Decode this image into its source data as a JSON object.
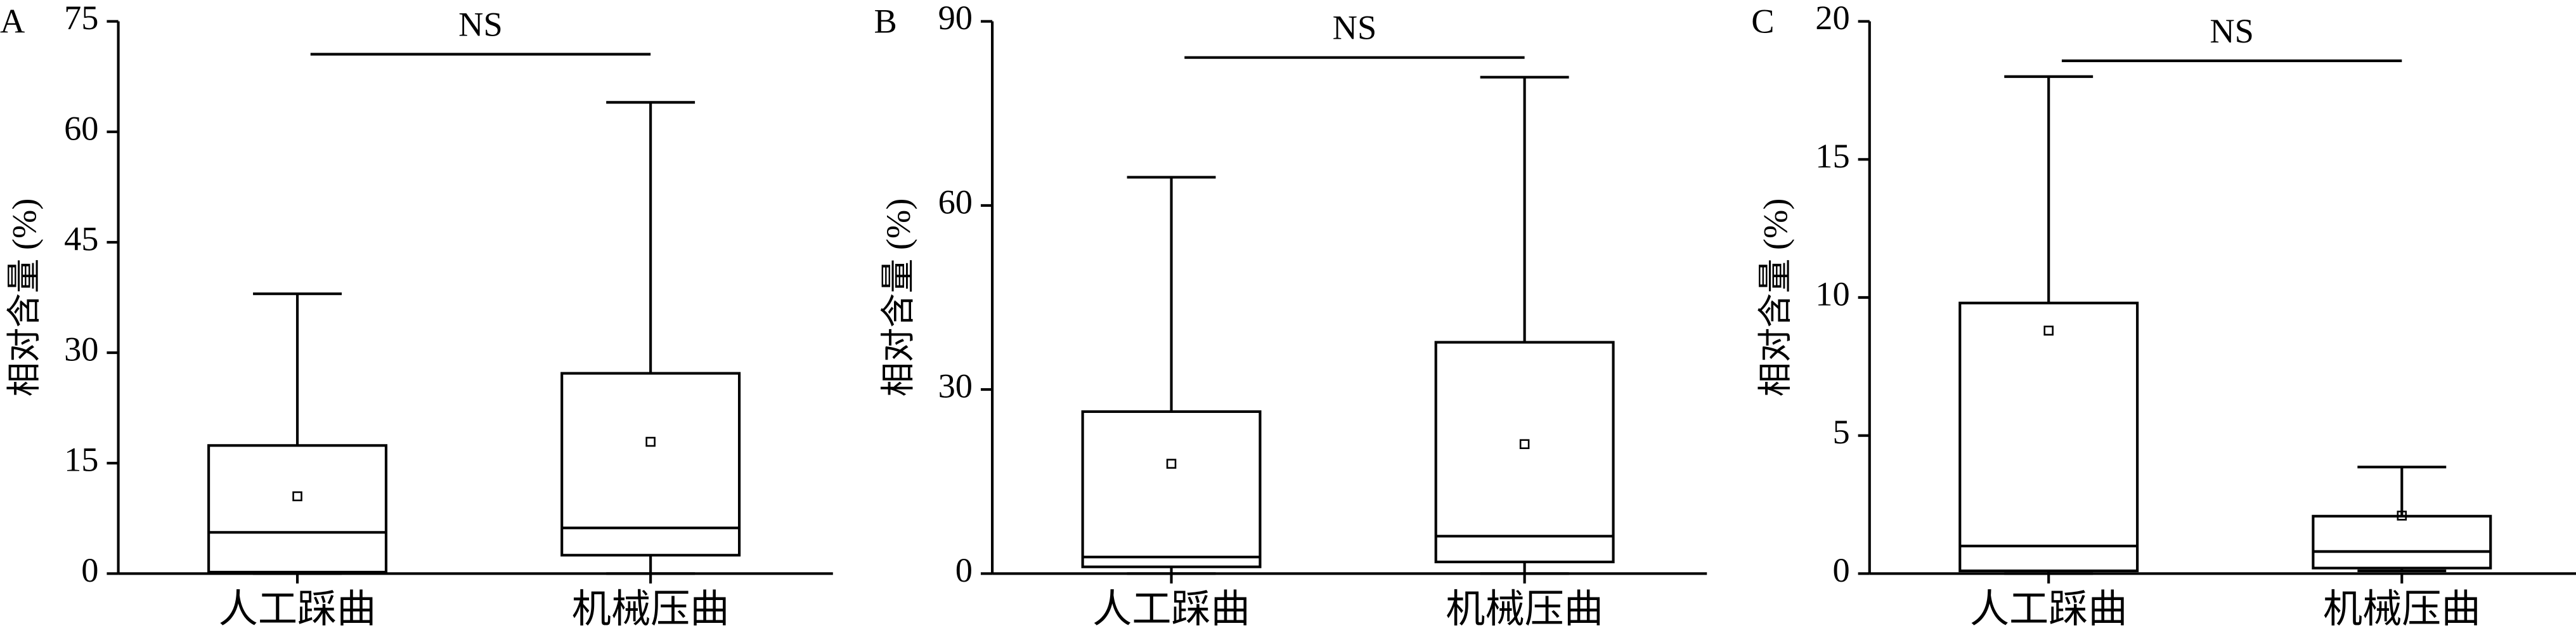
{
  "chart_data": [
    {
      "type": "box",
      "panel_label": "A",
      "ylabel": "相对含量 (%)",
      "annotation": "NS",
      "categories": [
        "人工踩曲",
        "机械压曲"
      ],
      "boxes": [
        {
          "min": 0,
          "q1": 0.2,
          "median": 5.6,
          "q3": 17.4,
          "max": 38,
          "mean": 10.5
        },
        {
          "min": 0,
          "q1": 2.5,
          "median": 6.2,
          "q3": 27.2,
          "max": 64,
          "mean": 17.9
        }
      ],
      "ylim": [
        0,
        75
      ],
      "yticks": [
        0,
        15,
        30,
        45,
        60,
        75
      ]
    },
    {
      "type": "box",
      "panel_label": "B",
      "ylabel": "相对含量 (%)",
      "annotation": "NS",
      "categories": [
        "人工踩曲",
        "机械压曲"
      ],
      "boxes": [
        {
          "min": 0,
          "q1": 1.1,
          "median": 2.7,
          "q3": 26.4,
          "max": 64.6,
          "mean": 17.9
        },
        {
          "min": 0,
          "q1": 1.9,
          "median": 6.1,
          "q3": 37.7,
          "max": 80.9,
          "mean": 21.1
        }
      ],
      "ylim": [
        0,
        90
      ],
      "yticks": [
        0,
        30,
        60,
        90
      ]
    },
    {
      "type": "box",
      "panel_label": "C",
      "ylabel": "相对含量 (%)",
      "annotation": "NS",
      "categories": [
        "人工踩曲",
        "机械压曲"
      ],
      "boxes": [
        {
          "min": 0,
          "q1": 0.1,
          "median": 1.0,
          "q3": 9.8,
          "max": 18,
          "mean": 8.8
        },
        {
          "min": 0.1,
          "q1": 0.2,
          "median": 0.8,
          "q3": 2.08,
          "max": 3.86,
          "mean": 2.1
        }
      ],
      "ylim": [
        0,
        20
      ],
      "yticks": [
        0,
        5,
        10,
        15,
        20
      ]
    }
  ]
}
